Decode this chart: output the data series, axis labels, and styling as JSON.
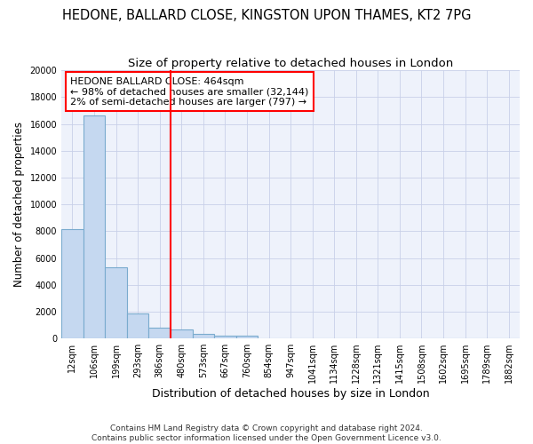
{
  "title": "HEDONE, BALLARD CLOSE, KINGSTON UPON THAMES, KT2 7PG",
  "subtitle": "Size of property relative to detached houses in London",
  "xlabel": "Distribution of detached houses by size in London",
  "ylabel": "Number of detached properties",
  "bar_color": "#c5d8f0",
  "bar_edge_color": "#7aabce",
  "background_color": "#eef2fb",
  "gridcolor": "#c8d0e8",
  "vline_color": "red",
  "annotation_box_text": "HEDONE BALLARD CLOSE: 464sqm\n← 98% of detached houses are smaller (32,144)\n2% of semi-detached houses are larger (797) →",
  "annotation_box_edge_color": "red",
  "annotation_box_facecolor": "white",
  "bin_labels": [
    "12sqm",
    "106sqm",
    "199sqm",
    "293sqm",
    "386sqm",
    "480sqm",
    "573sqm",
    "667sqm",
    "760sqm",
    "854sqm",
    "947sqm",
    "1041sqm",
    "1134sqm",
    "1228sqm",
    "1321sqm",
    "1415sqm",
    "1508sqm",
    "1602sqm",
    "1695sqm",
    "1789sqm",
    "1882sqm"
  ],
  "bar_heights": [
    8150,
    16600,
    5300,
    1850,
    800,
    700,
    350,
    230,
    230,
    0,
    0,
    0,
    0,
    0,
    0,
    0,
    0,
    0,
    0,
    0,
    0
  ],
  "ylim": [
    0,
    20000
  ],
  "yticks": [
    0,
    2000,
    4000,
    6000,
    8000,
    10000,
    12000,
    14000,
    16000,
    18000,
    20000
  ],
  "footer_text": "Contains HM Land Registry data © Crown copyright and database right 2024.\nContains public sector information licensed under the Open Government Licence v3.0.",
  "title_fontsize": 10.5,
  "subtitle_fontsize": 9.5,
  "xlabel_fontsize": 9,
  "ylabel_fontsize": 8.5,
  "tick_fontsize": 7,
  "footer_fontsize": 6.5,
  "annotation_fontsize": 8
}
